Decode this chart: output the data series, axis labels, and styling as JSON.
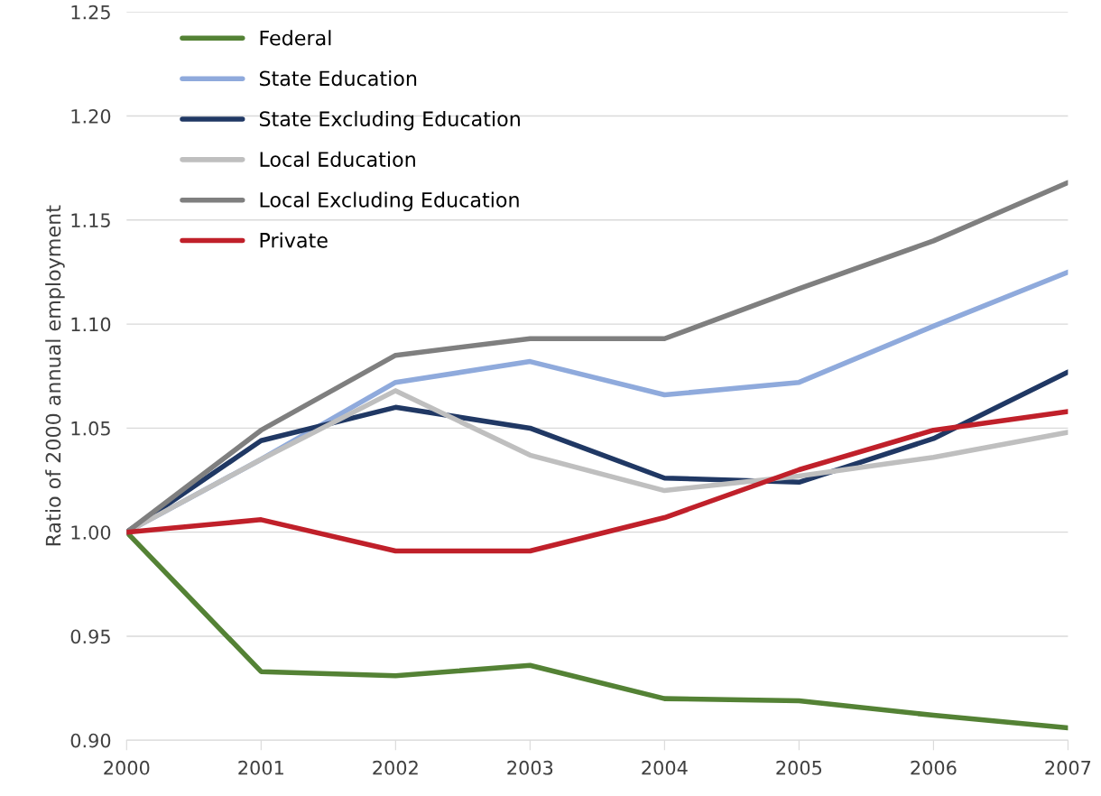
{
  "chart_data": {
    "type": "line",
    "ylabel": "Ratio of 2000 annual employment",
    "x": [
      2000,
      2001,
      2002,
      2003,
      2004,
      2005,
      2006,
      2007
    ],
    "xlim": [
      2000,
      2007
    ],
    "xticks": [
      2000,
      2001,
      2002,
      2003,
      2004,
      2005,
      2006,
      2007
    ],
    "ylim": [
      0.9,
      1.25
    ],
    "yticks": [
      {
        "value": 0.9,
        "label": "0.90"
      },
      {
        "value": 0.95,
        "label": "0.95"
      },
      {
        "value": 1.0,
        "label": "1.00"
      },
      {
        "value": 1.05,
        "label": "1.05"
      },
      {
        "value": 1.1,
        "label": "1.10"
      },
      {
        "value": 1.15,
        "label": "1.15"
      },
      {
        "value": 1.2,
        "label": "1.20"
      },
      {
        "value": 1.25,
        "label": "1.25"
      }
    ],
    "grid": "y",
    "legend": "top left",
    "marker": "none",
    "line_style": "solid",
    "series": [
      {
        "name": "Federal",
        "color": "#548235",
        "values": [
          1.0,
          0.933,
          0.931,
          0.936,
          0.92,
          0.919,
          0.912,
          0.906
        ]
      },
      {
        "name": "State Education",
        "color": "#8faadc",
        "values": [
          1.0,
          1.035,
          1.072,
          1.082,
          1.066,
          1.072,
          1.099,
          1.125
        ]
      },
      {
        "name": "State Excluding Education",
        "color": "#203864",
        "values": [
          1.0,
          1.044,
          1.06,
          1.05,
          1.026,
          1.024,
          1.045,
          1.077
        ]
      },
      {
        "name": "Local Education",
        "color": "#bfbfbf",
        "values": [
          1.0,
          1.035,
          1.068,
          1.037,
          1.02,
          1.027,
          1.036,
          1.048
        ]
      },
      {
        "name": "Local Excluding Education",
        "color": "#7f7f7f",
        "values": [
          1.0,
          1.049,
          1.085,
          1.093,
          1.093,
          1.117,
          1.14,
          1.168
        ]
      },
      {
        "name": "Private",
        "color": "#c0202a",
        "values": [
          1.0,
          1.006,
          0.991,
          0.991,
          1.007,
          1.03,
          1.049,
          1.058
        ]
      }
    ]
  }
}
